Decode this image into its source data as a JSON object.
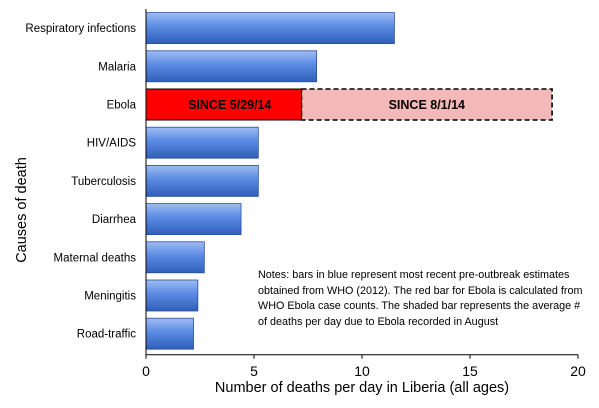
{
  "chart_data": {
    "type": "bar",
    "orientation": "horizontal",
    "categories": [
      "Respiratory infections",
      "Malaria",
      "Ebola",
      "HIV/AIDS",
      "Tuberculosis",
      "Diarrhea",
      "Maternal deaths",
      "Meningitis",
      "Road-traffic"
    ],
    "values": [
      11.5,
      7.9,
      7.2,
      5.2,
      5.2,
      4.4,
      2.7,
      2.4,
      2.2
    ],
    "ebola_shaded": {
      "category": "Ebola",
      "value": 18.8
    },
    "ebola_labels": {
      "red": "SINCE 5/29/14",
      "shaded": "SINCE 8/1/14"
    },
    "xlabel": "Number of deaths per day in Liberia (all ages)",
    "ylabel": "Causes of death",
    "xlim": [
      0,
      20
    ],
    "xticks": [
      0,
      5,
      10,
      15,
      20
    ],
    "grid": "off",
    "colors": {
      "blue": "#4f80dc",
      "red": "#ff0000",
      "shaded": "#f4b8b8"
    },
    "notes": "Notes: bars in blue represent most recent pre-outbreak estimates obtained from WHO (2012). The red bar for Ebola is calculated from WHO Ebola case counts. The shaded bar represents the average # of deaths per day due to Ebola recorded in August"
  }
}
